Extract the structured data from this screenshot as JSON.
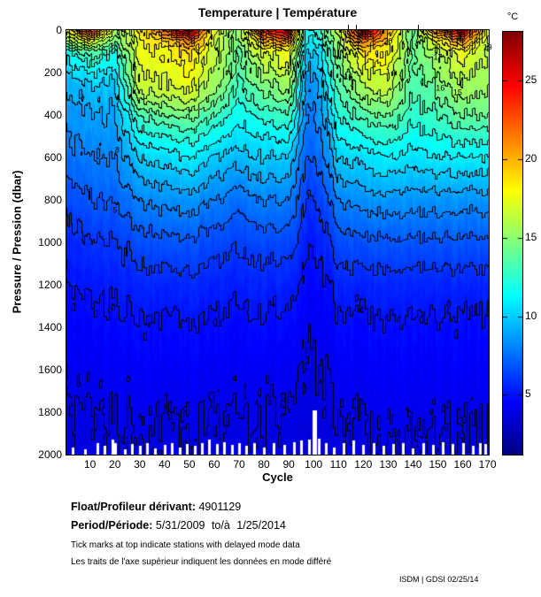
{
  "title": "Temperature | Température",
  "axes": {
    "x": {
      "label": "Cycle",
      "ticks": [
        10,
        20,
        30,
        40,
        50,
        60,
        70,
        80,
        90,
        100,
        110,
        120,
        130,
        140,
        150,
        160,
        170
      ],
      "range": [
        0.5,
        170.5
      ]
    },
    "y": {
      "label": "Pressure / Pression (dbar)",
      "ticks": [
        0,
        200,
        400,
        600,
        800,
        1000,
        1200,
        1400,
        1600,
        1800,
        2000
      ],
      "range": [
        0,
        2000
      ]
    }
  },
  "colorbar": {
    "label": "°C",
    "ticks": [
      5,
      10,
      15,
      20,
      25
    ],
    "min": 1.2,
    "max": 28.1,
    "colormap": "jet"
  },
  "footer": {
    "float_label": "Float/Profileur dérivant:",
    "float_value": "4901129",
    "period_label": "Period/Période:",
    "period_value": "5/31/2009 to/à 1/25/2014",
    "note_en": "Tick marks at top indicate stations with delayed mode data",
    "note_fr": "Les traits de l'axe supérieur indiquent les données en mode différé",
    "credit": "ISDM | GDSI 02/25/14"
  },
  "chart_data": {
    "type": "heatmap",
    "title": "Temperature | Température",
    "xlabel": "Cycle",
    "ylabel": "Pressure / Pression (dbar)",
    "colormap": "jet",
    "color_range_c": [
      1.2,
      28.1
    ],
    "contour_interval_c": 1,
    "x_cycles": [
      1,
      10,
      20,
      30,
      40,
      50,
      60,
      70,
      80,
      90,
      94,
      97,
      100,
      103,
      106,
      110,
      120,
      130,
      140,
      150,
      160,
      170
    ],
    "y_pressures_dbar": [
      0,
      50,
      100,
      200,
      300,
      400,
      500,
      600,
      800,
      1000,
      1200,
      1400,
      1600,
      1800,
      2000
    ],
    "values_by_cycle": [
      [
        18,
        15,
        12,
        10,
        9,
        8.5,
        8,
        7.5,
        6.5,
        5.5,
        5,
        4.5,
        4.2,
        4,
        3.8
      ],
      [
        24,
        18,
        14,
        11,
        9.5,
        9,
        8.5,
        8,
        7,
        6,
        5.2,
        4.7,
        4.3,
        4,
        3.8
      ],
      [
        16,
        14,
        12,
        10.5,
        9.5,
        9,
        8.5,
        8,
        7,
        6,
        5.2,
        4.7,
        4.3,
        4,
        3.8
      ],
      [
        18,
        18,
        17.5,
        17,
        16,
        13,
        11.5,
        10,
        8,
        6.5,
        5.5,
        4.8,
        4.4,
        4.1,
        3.9
      ],
      [
        22,
        19,
        18,
        17.5,
        16.5,
        14,
        12,
        10.5,
        8.5,
        6.8,
        5.6,
        4.9,
        4.4,
        4.1,
        3.9
      ],
      [
        27,
        22,
        19,
        18,
        17,
        14.5,
        12.5,
        11,
        8.5,
        6.8,
        5.6,
        4.9,
        4.4,
        4.1,
        3.9
      ],
      [
        17,
        17,
        16.5,
        16,
        15,
        13,
        11.5,
        10,
        8,
        6.5,
        5.4,
        4.8,
        4.3,
        4,
        3.8
      ],
      [
        15,
        14.5,
        14,
        13.5,
        12.5,
        11.5,
        10.5,
        9.5,
        7.5,
        6.2,
        5.3,
        4.7,
        4.3,
        4,
        3.8
      ],
      [
        24,
        20,
        17,
        15.5,
        14,
        12.5,
        11,
        10,
        8,
        6.5,
        5.4,
        4.8,
        4.3,
        4,
        3.8
      ],
      [
        26,
        21,
        18,
        16.5,
        15,
        13,
        11.5,
        10,
        8,
        6.5,
        5.4,
        4.8,
        4.3,
        4,
        3.8
      ],
      [
        18,
        16,
        14,
        12.5,
        11.5,
        10.5,
        9.5,
        8.5,
        7,
        6,
        5.2,
        4.6,
        4.2,
        3.9,
        3.7
      ],
      [
        12,
        11,
        10,
        9,
        8.5,
        8,
        7.5,
        7,
        6,
        5.2,
        4.6,
        4.2,
        3.9,
        3.7,
        3.6
      ],
      [
        12,
        10.5,
        10,
        9,
        8.5,
        8,
        7.5,
        7,
        6,
        5.2,
        4.6,
        4.2,
        3.9,
        3.7,
        3.6
      ],
      [
        13,
        12,
        11,
        10,
        9,
        8.5,
        8,
        7.5,
        6.3,
        5.4,
        4.7,
        4.3,
        4,
        3.8,
        3.6
      ],
      [
        15,
        14,
        13,
        12,
        11,
        10,
        9,
        8.5,
        7,
        5.8,
        5,
        4.5,
        4.1,
        3.9,
        3.7
      ],
      [
        16,
        15.5,
        15,
        14,
        13,
        12,
        11,
        10,
        8,
        6.5,
        5.4,
        4.8,
        4.3,
        4,
        3.8
      ],
      [
        27,
        22,
        19,
        17,
        15.5,
        13.5,
        12,
        10.5,
        8.5,
        6.8,
        5.5,
        4.8,
        4.4,
        4.1,
        3.9
      ],
      [
        20,
        19,
        18,
        17,
        16,
        14,
        12.5,
        11,
        8.5,
        6.8,
        5.5,
        4.8,
        4.4,
        4.1,
        3.9
      ],
      [
        14,
        14,
        14,
        13.5,
        13,
        12.5,
        11.5,
        10.5,
        8.5,
        6.8,
        5.5,
        4.8,
        4.4,
        4.1,
        3.9
      ],
      [
        22,
        18,
        16,
        15,
        14,
        13,
        12,
        11,
        8.5,
        6.8,
        5.5,
        4.8,
        4.4,
        4.1,
        3.9
      ],
      [
        26,
        21,
        18,
        16.5,
        15.5,
        14,
        12.5,
        11,
        8.5,
        6.8,
        5.5,
        4.8,
        4.4,
        4.1,
        3.9
      ],
      [
        17,
        16.5,
        16,
        15.5,
        15,
        14,
        12.5,
        11,
        8.5,
        6.8,
        5.5,
        4.8,
        4.4,
        4.1,
        3.9
      ]
    ],
    "contour_labels": [
      {
        "value": "4",
        "cycle": 30,
        "p": 1820
      },
      {
        "value": "4",
        "cycle": 77,
        "p": 1760
      },
      {
        "value": "4",
        "cycle": 88,
        "p": 1745
      },
      {
        "value": "5",
        "cycle": 20,
        "p": 850
      },
      {
        "value": "8",
        "cycle": 21,
        "p": 565
      },
      {
        "value": "7",
        "cycle": 50,
        "p": 390
      },
      {
        "value": "16",
        "cycle": 114,
        "p": 220
      },
      {
        "value": "17",
        "cycle": 150,
        "p": 130
      },
      {
        "value": "16",
        "cycle": 151,
        "p": 276
      },
      {
        "value": "15",
        "cycle": 158,
        "p": 295
      },
      {
        "value": "19",
        "cycle": 170,
        "p": 82
      },
      {
        "value": "20",
        "cycle": 130,
        "p": 55
      }
    ],
    "delayed_mode_tick_cycles": [
      114,
      117,
      142
    ],
    "missing_bottom_data": [
      [
        3,
        1965
      ],
      [
        8,
        1975
      ],
      [
        13,
        1945
      ],
      [
        16,
        1960
      ],
      [
        19,
        1930
      ],
      [
        20,
        1945
      ],
      [
        24,
        1975
      ],
      [
        27,
        1950
      ],
      [
        30,
        1960
      ],
      [
        33,
        1945
      ],
      [
        36,
        1970
      ],
      [
        40,
        1955
      ],
      [
        43,
        1945
      ],
      [
        46,
        1965
      ],
      [
        49,
        1950
      ],
      [
        52,
        1960
      ],
      [
        55,
        1945
      ],
      [
        58,
        1930
      ],
      [
        61,
        1950
      ],
      [
        64,
        1940
      ],
      [
        67,
        1955
      ],
      [
        70,
        1945
      ],
      [
        73,
        1960
      ],
      [
        76,
        1945
      ],
      [
        80,
        1965
      ],
      [
        84,
        1945
      ],
      [
        88,
        1955
      ],
      [
        92,
        1940
      ],
      [
        95,
        1935
      ],
      [
        98,
        1930
      ],
      [
        100,
        1790
      ],
      [
        102,
        1925
      ],
      [
        105,
        1945
      ],
      [
        108,
        1965
      ],
      [
        112,
        1945
      ],
      [
        116,
        1935
      ],
      [
        120,
        1955
      ],
      [
        124,
        1945
      ],
      [
        128,
        1960
      ],
      [
        132,
        1950
      ],
      [
        136,
        1945
      ],
      [
        140,
        1970
      ],
      [
        144,
        1945
      ],
      [
        148,
        1955
      ],
      [
        152,
        1940
      ],
      [
        156,
        1950
      ],
      [
        160,
        1945
      ],
      [
        164,
        1960
      ],
      [
        167,
        1945
      ],
      [
        169,
        1950
      ]
    ]
  }
}
